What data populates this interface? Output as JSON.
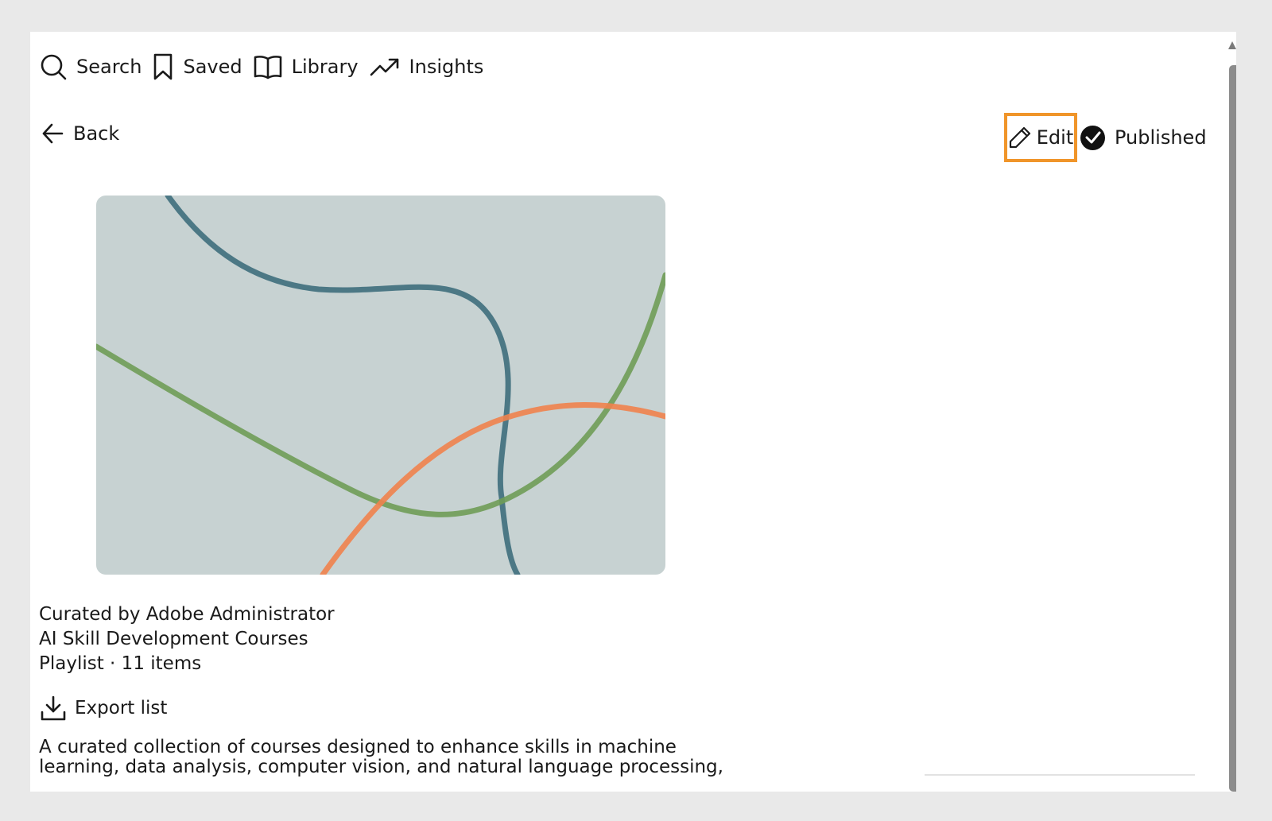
{
  "nav": {
    "items": [
      {
        "label": "Search",
        "icon": "search-icon"
      },
      {
        "label": "Saved",
        "icon": "bookmark-icon"
      },
      {
        "label": "Library",
        "icon": "book-icon"
      },
      {
        "label": "Insights",
        "icon": "trending-up-icon"
      }
    ]
  },
  "header": {
    "back_label": "Back",
    "edit_label": "Edit",
    "status_label": "Published"
  },
  "colors": {
    "highlight": "#f0952a",
    "cover_bg": "#c7d2d2",
    "line_blue": "#3e6e7c",
    "line_green": "#6f9c57",
    "line_orange": "#f0824d"
  },
  "playlist": {
    "curator": "Curated by Adobe Administrator",
    "title": "AI Skill Development Courses",
    "type_count": "Playlist · 11 items",
    "export_label": "Export list",
    "description_line1": "A curated collection of courses designed to enhance skills in machine",
    "description_line2": "learning, data analysis, computer vision, and natural language processing,"
  }
}
